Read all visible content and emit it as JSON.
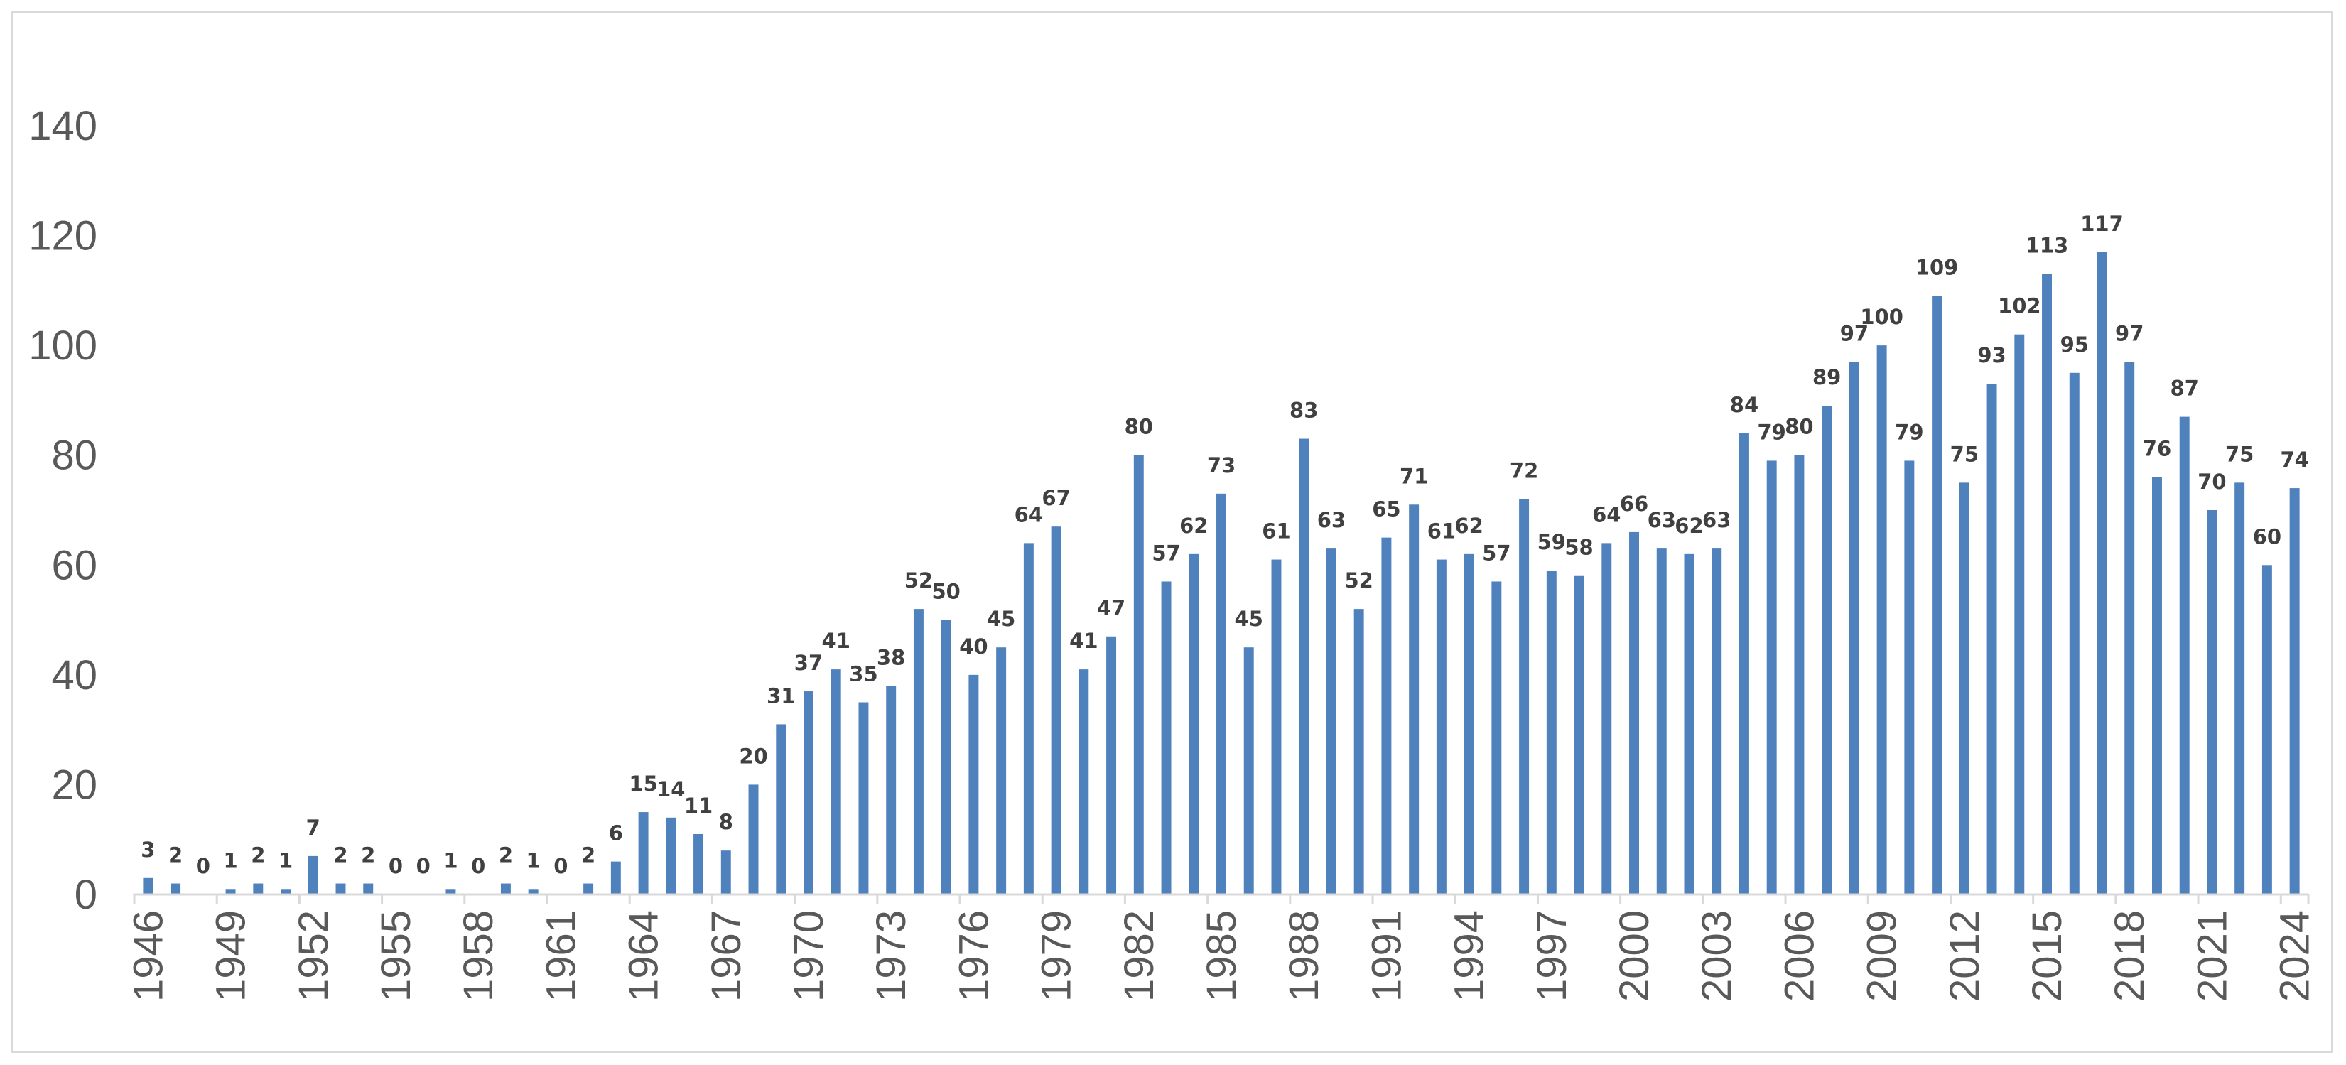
{
  "chart_data": {
    "type": "bar",
    "title": "",
    "xlabel": "",
    "ylabel": "",
    "ylim": [
      0,
      140
    ],
    "y_ticks": [
      "0",
      "20",
      "40",
      "60",
      "80",
      "100",
      "120",
      "140"
    ],
    "y_tick_values": [
      0,
      20,
      40,
      60,
      80,
      100,
      120,
      140
    ],
    "grid": false,
    "legend": "none",
    "bar_color": "#4f81bd",
    "x_tick_every": 3,
    "categories": [
      "1946",
      "1947",
      "1948",
      "1949",
      "1950",
      "1951",
      "1952",
      "1953",
      "1954",
      "1955",
      "1956",
      "1957",
      "1958",
      "1959",
      "1960",
      "1961",
      "1962",
      "1963",
      "1964",
      "1965",
      "1966",
      "1967",
      "1968",
      "1969",
      "1970",
      "1971",
      "1972",
      "1973",
      "1974",
      "1975",
      "1976",
      "1977",
      "1978",
      "1979",
      "1980",
      "1981",
      "1982",
      "1983",
      "1984",
      "1985",
      "1986",
      "1987",
      "1988",
      "1989",
      "1990",
      "1991",
      "1992",
      "1993",
      "1994",
      "1995",
      "1996",
      "1997",
      "1998",
      "1999",
      "2000",
      "2001",
      "2002",
      "2003",
      "2004",
      "2005",
      "2006",
      "2007",
      "2008",
      "2009",
      "2010",
      "2011",
      "2012",
      "2013",
      "2014",
      "2015",
      "2016",
      "2017",
      "2018",
      "2019",
      "2020",
      "2021",
      "2022",
      "2023",
      "2024"
    ],
    "values": [
      3,
      2,
      0,
      1,
      2,
      1,
      7,
      2,
      2,
      0,
      0,
      1,
      0,
      2,
      1,
      0,
      2,
      6,
      15,
      14,
      11,
      8,
      20,
      31,
      37,
      41,
      35,
      38,
      52,
      50,
      40,
      45,
      64,
      67,
      41,
      47,
      80,
      57,
      62,
      73,
      45,
      61,
      83,
      63,
      52,
      65,
      71,
      61,
      62,
      57,
      72,
      59,
      58,
      64,
      66,
      63,
      62,
      63,
      84,
      79,
      80,
      89,
      97,
      100,
      79,
      109,
      75,
      93,
      102,
      113,
      95,
      117,
      97,
      76,
      87,
      70,
      75,
      60,
      74
    ]
  }
}
